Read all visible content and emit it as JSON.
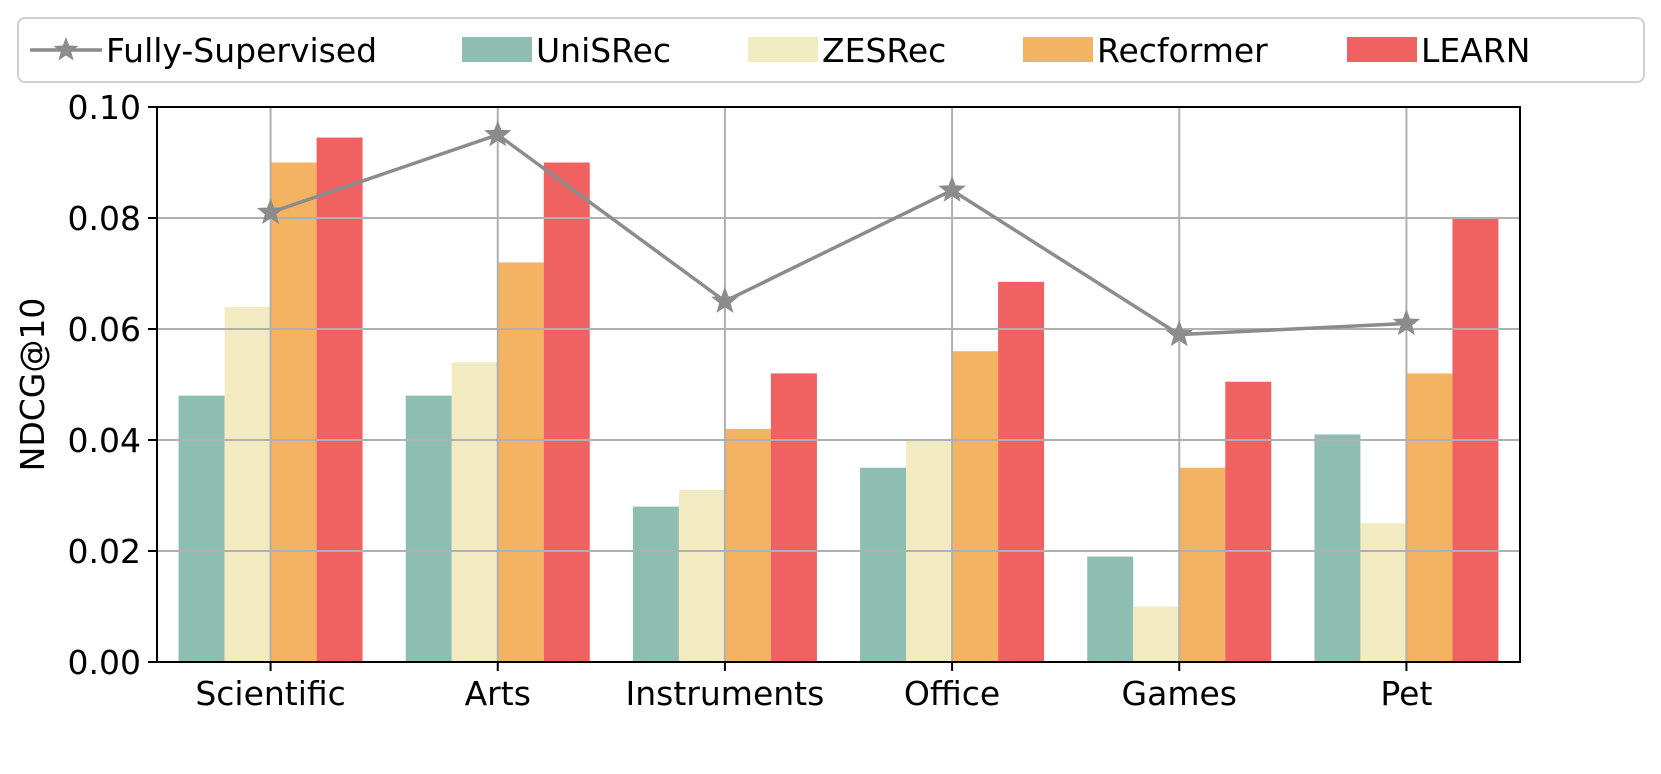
{
  "chart_data": {
    "type": "bar",
    "title": "",
    "xlabel": "",
    "ylabel": "NDCG@10",
    "ylim": [
      0,
      0.1
    ],
    "yticks": [
      "0.00",
      "0.02",
      "0.04",
      "0.06",
      "0.08",
      "0.10"
    ],
    "grid": true,
    "legend_position": "top",
    "categories": [
      "Scientific",
      "Arts",
      "Instruments",
      "Office",
      "Games",
      "Pet"
    ],
    "line_series": {
      "name": "Fully-Supervised",
      "type": "line",
      "marker": "star",
      "color": "#8c8c8c",
      "values": [
        0.081,
        0.095,
        0.065,
        0.085,
        0.059,
        0.061
      ]
    },
    "series": [
      {
        "name": "UniSRec",
        "color": "#8dbeb1",
        "values": [
          0.048,
          0.048,
          0.028,
          0.035,
          0.019,
          0.041
        ]
      },
      {
        "name": "ZESRec",
        "color": "#f2ebc1",
        "values": [
          0.064,
          0.054,
          0.031,
          0.04,
          0.01,
          0.025
        ]
      },
      {
        "name": "Recformer",
        "color": "#f3b363",
        "values": [
          0.09,
          0.072,
          0.042,
          0.056,
          0.035,
          0.052
        ]
      },
      {
        "name": "LEARN",
        "color": "#f06262",
        "values": [
          0.0945,
          0.09,
          0.052,
          0.0685,
          0.0505,
          0.08
        ]
      }
    ]
  }
}
